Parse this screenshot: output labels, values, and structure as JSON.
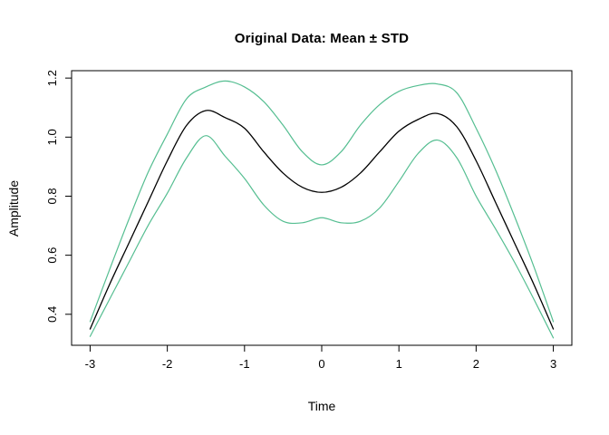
{
  "colors": {
    "mean_line": "#000000",
    "std_line": "#55BE91",
    "axis": "#000000",
    "background": "#ffffff"
  },
  "chart_data": {
    "type": "line",
    "title": "Original Data: Mean ± STD",
    "xlabel": "Time",
    "ylabel": "Amplitude",
    "xlim": [
      -3.24,
      3.24
    ],
    "ylim": [
      0.295,
      1.225
    ],
    "x_ticks": [
      -3,
      -2,
      -1,
      0,
      1,
      2,
      3
    ],
    "x_tick_labels": [
      "-3",
      "-2",
      "-1",
      "0",
      "1",
      "2",
      "3"
    ],
    "y_ticks": [
      0.4,
      0.6,
      0.8,
      1.0,
      1.2
    ],
    "y_tick_labels": [
      "0.4",
      "0.6",
      "0.8",
      "1.0",
      "1.2"
    ],
    "grid": false,
    "legend": "none",
    "x": [
      -3,
      -2.75,
      -2.5,
      -2.25,
      -2,
      -1.75,
      -1.5,
      -1.25,
      -1,
      -0.75,
      -0.5,
      -0.25,
      0,
      0.25,
      0.5,
      0.75,
      1,
      1.25,
      1.5,
      1.75,
      2,
      2.25,
      2.5,
      2.75,
      3
    ],
    "series": [
      {
        "name": "mean",
        "color": "#000000",
        "width": 1.3,
        "values": [
          0.35,
          0.5,
          0.64,
          0.78,
          0.92,
          1.04,
          1.09,
          1.066,
          1.03,
          0.95,
          0.878,
          0.83,
          0.813,
          0.83,
          0.878,
          0.95,
          1.02,
          1.06,
          1.08,
          1.035,
          0.92,
          0.78,
          0.64,
          0.5,
          0.35
        ]
      },
      {
        "name": "mean_plus_std",
        "color": "#55BE91",
        "width": 1.2,
        "values": [
          0.375,
          0.55,
          0.72,
          0.88,
          1.01,
          1.13,
          1.17,
          1.19,
          1.17,
          1.12,
          1.04,
          0.95,
          0.906,
          0.95,
          1.04,
          1.11,
          1.155,
          1.175,
          1.18,
          1.15,
          1.03,
          0.89,
          0.73,
          0.56,
          0.375
        ]
      },
      {
        "name": "mean_minus_std",
        "color": "#55BE91",
        "width": 1.2,
        "values": [
          0.325,
          0.45,
          0.575,
          0.7,
          0.81,
          0.93,
          1.005,
          0.935,
          0.86,
          0.77,
          0.715,
          0.71,
          0.727,
          0.71,
          0.715,
          0.76,
          0.85,
          0.945,
          0.99,
          0.93,
          0.8,
          0.69,
          0.575,
          0.45,
          0.32
        ]
      }
    ]
  }
}
